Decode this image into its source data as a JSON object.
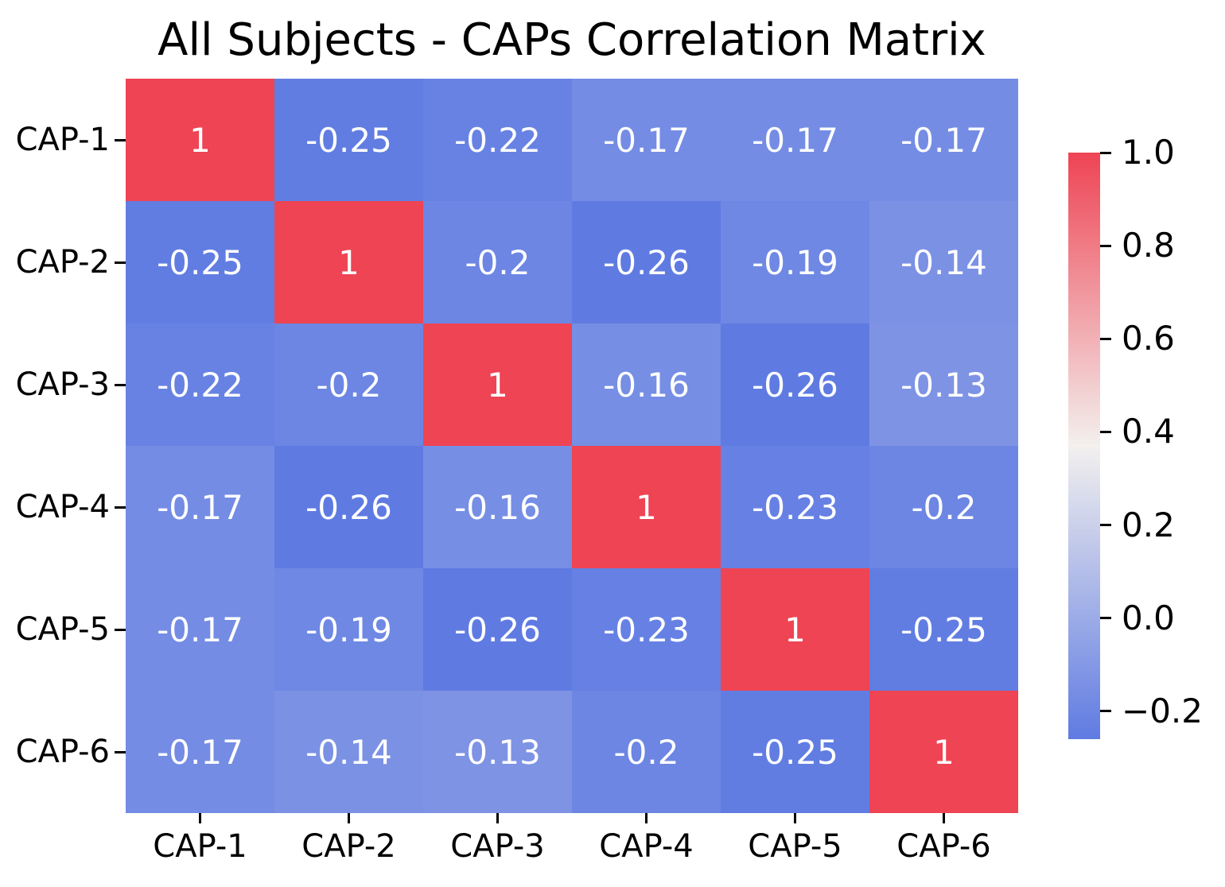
{
  "title": "All Subjects - CAPs Correlation Matrix",
  "colors": {
    "background": "#ffffff",
    "cmap_low": "#5f7be2",
    "cmap_mid": "#f3f0ee",
    "cmap_high": "#ee4454",
    "annotation_text": "#ffffff",
    "axis_text": "#000000"
  },
  "chart_data": {
    "type": "heatmap",
    "title": "All Subjects - CAPs Correlation Matrix",
    "x_categories": [
      "CAP-1",
      "CAP-2",
      "CAP-3",
      "CAP-4",
      "CAP-5",
      "CAP-6"
    ],
    "y_categories": [
      "CAP-1",
      "CAP-2",
      "CAP-3",
      "CAP-4",
      "CAP-5",
      "CAP-6"
    ],
    "matrix": [
      [
        1,
        -0.25,
        -0.22,
        -0.17,
        -0.17,
        -0.17
      ],
      [
        -0.25,
        1,
        -0.2,
        -0.26,
        -0.19,
        -0.14
      ],
      [
        -0.22,
        -0.2,
        1,
        -0.16,
        -0.26,
        -0.13
      ],
      [
        -0.17,
        -0.26,
        -0.16,
        1,
        -0.23,
        -0.2
      ],
      [
        -0.17,
        -0.19,
        -0.26,
        -0.23,
        1,
        -0.25
      ],
      [
        -0.17,
        -0.14,
        -0.13,
        -0.2,
        -0.25,
        1
      ]
    ],
    "annotations": true,
    "vmin": -0.26,
    "vmax": 1.0,
    "grid": false,
    "colorbar": {
      "position": "right",
      "ticks": [
        {
          "value": 1.0,
          "label": "1.0"
        },
        {
          "value": 0.8,
          "label": "0.8"
        },
        {
          "value": 0.6,
          "label": "0.6"
        },
        {
          "value": 0.4,
          "label": "0.4"
        },
        {
          "value": 0.2,
          "label": "0.2"
        },
        {
          "value": 0.0,
          "label": "0.0"
        },
        {
          "value": -0.2,
          "label": "−0.2"
        }
      ]
    }
  }
}
